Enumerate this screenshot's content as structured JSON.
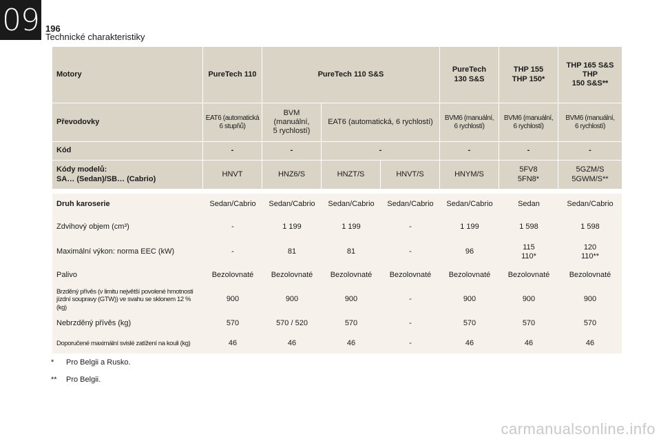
{
  "page": {
    "chapter": "09",
    "number": "196",
    "title": "Technické charakteristiky"
  },
  "header_row": [
    "Motory",
    "PureTech 110",
    "PureTech 110 S&S",
    "PureTech\n130 S&S",
    "THP 155\nTHP 150*",
    "THP 165 S&S\nTHP\n150 S&S**"
  ],
  "gearbox_row": [
    "Převodovky",
    "EAT6 (automatická\n6 stupňů)",
    "BVM\n(manuální,\n5 rychlostí)",
    "EAT6 (automatická, 6 rychlostí)",
    "BVM6 (manuální,\n6 rychlostí)",
    "BVM6 (manuální,\n6 rychlostí)",
    "BVM6 (manuální,\n6 rychlostí)"
  ],
  "code_row": [
    "Kód",
    "-",
    "-",
    "-",
    "-",
    "-",
    "-"
  ],
  "model_row": [
    "Kódy modelů:\nSA… (Sedan)/SB… (Cabrio)",
    "HNVT",
    "HNZ6/S",
    "HNZT/S",
    "HNVT/S",
    "HNYM/S",
    "5FV8\n5FN8*",
    "5GZM/S\n5GWM/S**"
  ],
  "data_rows": [
    [
      "Druh karoserie",
      "Sedan/Cabrio",
      "Sedan/Cabrio",
      "Sedan/Cabrio",
      "Sedan/Cabrio",
      "Sedan/Cabrio",
      "Sedan",
      "Sedan/Cabrio"
    ],
    [
      "Zdvihový objem (cm³)",
      "-",
      "1 199",
      "1 199",
      "-",
      "1 199",
      "1 598",
      "1 598"
    ],
    [
      "Maximální výkon: norma EEC (kW)",
      "-",
      "81",
      "81",
      "-",
      "96",
      "115\n110*",
      "120\n110**"
    ],
    [
      "Palivo",
      "Bezolovnaté",
      "Bezolovnaté",
      "Bezolovnaté",
      "Bezolovnaté",
      "Bezolovnaté",
      "Bezolovnaté",
      "Bezolovnaté"
    ],
    [
      "Brzděný přívěs (v limitu největší povolené hmotnosti\njízdní soupravy (GTW)) ve svahu se sklonem 12 % (kg)",
      "900",
      "900",
      "900",
      "-",
      "900",
      "900",
      "900"
    ],
    [
      "Nebrzděný přívěs (kg)",
      "570",
      "570 / 520",
      "570",
      "-",
      "570",
      "570",
      "570"
    ],
    [
      "Doporučené maximální svislé zatížení na kouli (kg)",
      "46",
      "46",
      "46",
      "-",
      "46",
      "46",
      "46"
    ]
  ],
  "footnotes": [
    {
      "mark": "*",
      "text": "Pro Belgii a Rusko."
    },
    {
      "mark": "**",
      "text": "Pro Belgii."
    }
  ],
  "watermark": "carmanualsonline.info"
}
